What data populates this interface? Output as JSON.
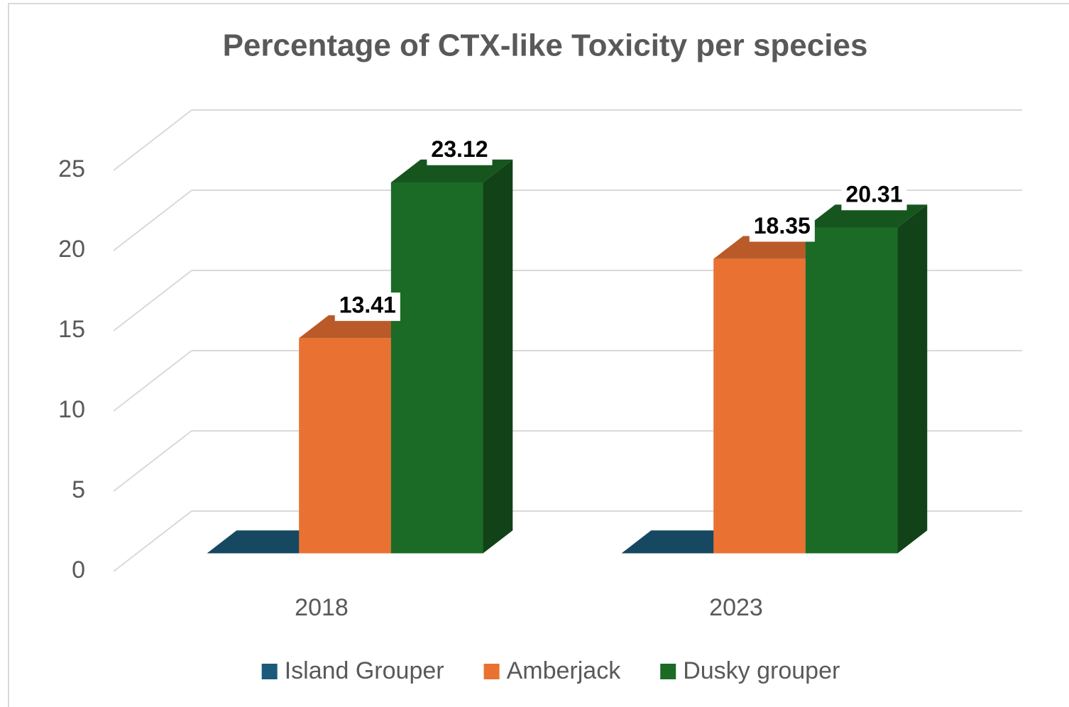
{
  "chart_data": {
    "type": "bar3d",
    "title": "Percentage of CTX-like Toxicity per species",
    "categories": [
      "2018",
      "2023"
    ],
    "series": [
      {
        "name": "Island Grouper",
        "color": "#1b5a7a",
        "values": [
          0,
          0
        ]
      },
      {
        "name": "Amberjack",
        "color": "#e97132",
        "values": [
          13.41,
          18.35
        ]
      },
      {
        "name": "Dusky grouper",
        "color": "#1b6b26",
        "values": [
          23.12,
          20.31
        ]
      }
    ],
    "data_labels": [
      "Amberjack",
      "Dusky grouper"
    ],
    "ylim": [
      0,
      25
    ],
    "yticks": [
      0,
      5,
      10,
      15,
      20,
      25
    ],
    "grid": true,
    "legend": "bottom"
  }
}
